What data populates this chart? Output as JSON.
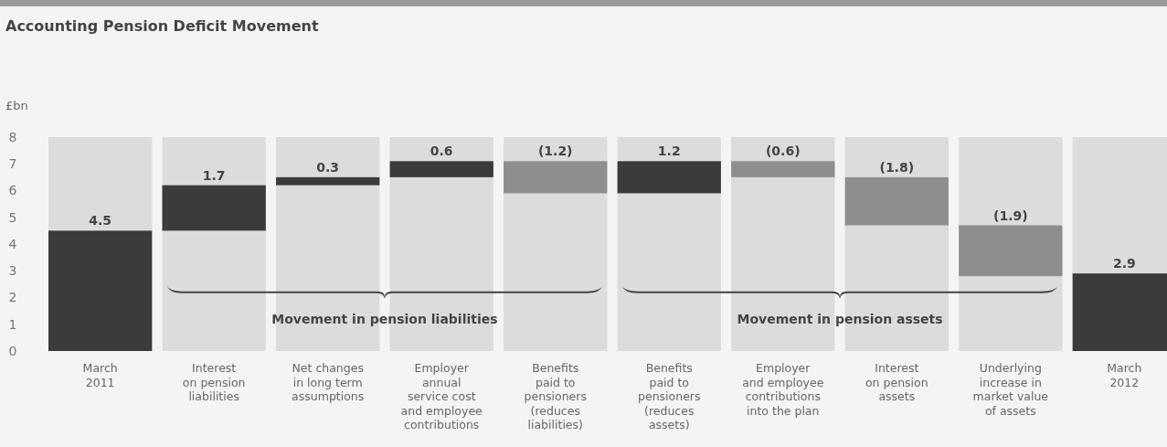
{
  "chart_data": {
    "type": "bar",
    "title": "Accounting Pension Deficit Movement",
    "ylabel": "£bn",
    "categories": [
      "March\n2011",
      "Interest\non pension\nliabilities",
      "Net changes\nin long term\nassumptions",
      "Employer\nannual\nservice cost\nand employee\ncontributions",
      "Benefits\npaid to\npensioners\n(reduces\nliabilities)",
      "Benefits\npaid to\npensioners\n(reduces\nassets)",
      "Employer\nand employee\ncontributions\ninto the plan",
      "Interest\non pension\nassets",
      "Underlying\nincrease in\nmarket value\nof assets",
      "March\n2012"
    ],
    "values": [
      4.5,
      1.7,
      0.3,
      0.6,
      -1.2,
      1.2,
      -0.6,
      -1.8,
      -1.9,
      2.9
    ],
    "base": [
      0,
      4.5,
      6.2,
      6.5,
      7.1,
      5.9,
      7.1,
      6.5,
      4.7,
      0
    ],
    "colors": [
      "#3b3b3b",
      "#3b3b3b",
      "#3b3b3b",
      "#3b3b3b",
      "#8e8e8e",
      "#3b3b3b",
      "#8e8e8e",
      "#8e8e8e",
      "#8e8e8e",
      "#3b3b3b"
    ],
    "value_labels": [
      "4.5",
      "1.7",
      "0.3",
      "0.6",
      "(1.2)",
      "1.2",
      "(0.6)",
      "(1.8)",
      "(1.9)",
      "2.9"
    ],
    "ylim": [
      0,
      8
    ],
    "yticks": [
      0,
      1,
      2,
      3,
      4,
      5,
      6,
      7,
      8
    ],
    "annotations": [
      "Movement in pension liabilities",
      "Movement in pension assets"
    ]
  }
}
